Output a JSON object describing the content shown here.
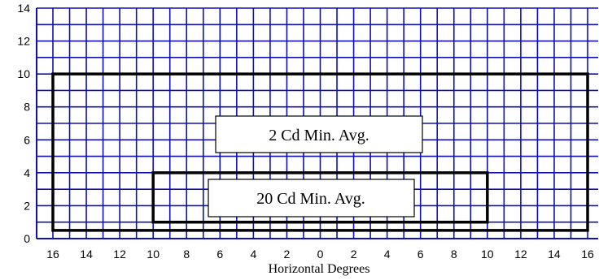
{
  "chart_data": {
    "type": "diagram",
    "xlabel": "Horizontal Degrees",
    "ylabel": "",
    "x_tick_labels": [
      "16",
      "14",
      "12",
      "10",
      "8",
      "6",
      "4",
      "2",
      "0",
      "2",
      "4",
      "6",
      "8",
      "10",
      "12",
      "14",
      "16"
    ],
    "y_tick_labels": [
      "0",
      "2",
      "4",
      "6",
      "8",
      "10",
      "12",
      "14"
    ],
    "x_range": [
      -16,
      16
    ],
    "y_range": [
      0,
      14
    ],
    "grid": true,
    "grid_step": {
      "x": 1,
      "y": 1
    },
    "regions": [
      {
        "label": "2 Cd Min. Avg.",
        "x": [
          -16,
          16
        ],
        "y": [
          0.5,
          10
        ]
      },
      {
        "label": "20 Cd Min. Avg.",
        "x": [
          -10,
          10
        ],
        "y": [
          1,
          4
        ]
      }
    ]
  },
  "colors": {
    "grid": "#1010b0",
    "frame": "#000000",
    "background": "#ffffff"
  }
}
